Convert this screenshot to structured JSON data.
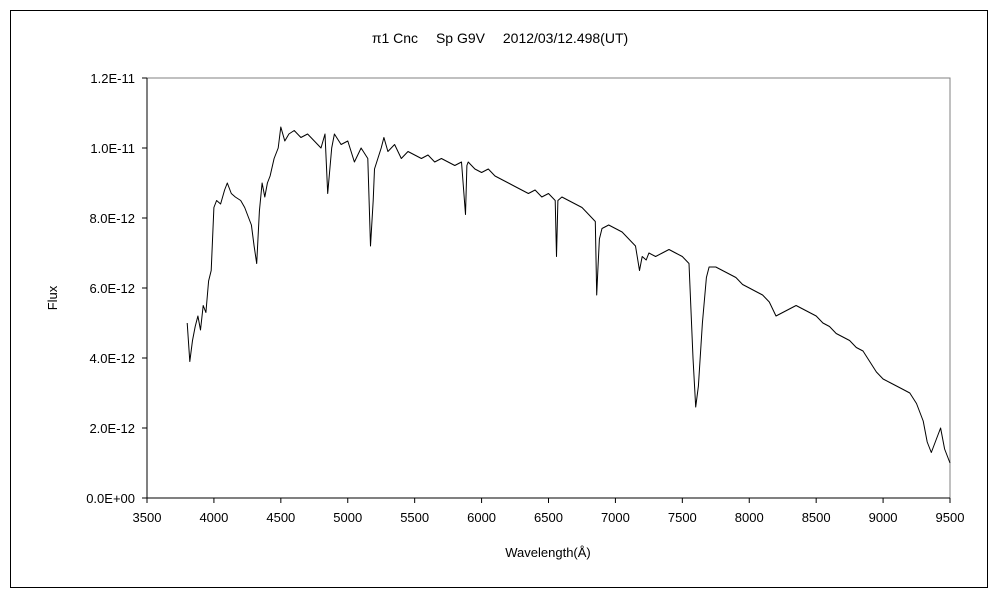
{
  "chart_data": {
    "type": "line",
    "title": "π1 Cnc　 Sp G9V　 2012/03/12.498(UT)",
    "xlabel": "Wavelength(Å)",
    "ylabel": "Flux",
    "xlim": [
      3500,
      9500
    ],
    "ylim": [
      0,
      1.2e-11
    ],
    "x_ticks": [
      3500,
      4000,
      4500,
      5000,
      5500,
      6000,
      6500,
      7000,
      7500,
      8000,
      8500,
      9000,
      9500
    ],
    "x_tick_labels": [
      "3500",
      "4000",
      "4500",
      "5000",
      "5500",
      "6000",
      "6500",
      "7000",
      "7500",
      "8000",
      "8500",
      "9000",
      "9500"
    ],
    "y_ticks": [
      0,
      2e-12,
      4e-12,
      6e-12,
      8e-12,
      1e-11,
      1.2e-11
    ],
    "y_tick_labels": [
      "0.0E+00",
      "2.0E-12",
      "4.0E-12",
      "6.0E-12",
      "8.0E-12",
      "1.0E-11",
      "1.2E-11"
    ],
    "grid": false,
    "legend": "none",
    "line_color": "#000000",
    "series": [
      {
        "x": [
          3800,
          3820,
          3840,
          3860,
          3880,
          3900,
          3920,
          3940,
          3960,
          3980,
          4000,
          4020,
          4050,
          4080,
          4100,
          4130,
          4160,
          4200,
          4230,
          4260,
          4280,
          4300,
          4320,
          4340,
          4360,
          4380,
          4400,
          4420,
          4450,
          4480,
          4500,
          4530,
          4560,
          4600,
          4650,
          4700,
          4750,
          4800,
          4830,
          4850,
          4880,
          4900,
          4950,
          5000,
          5050,
          5100,
          5150,
          5170,
          5190,
          5200,
          5250,
          5270,
          5300,
          5350,
          5400,
          5450,
          5500,
          5550,
          5600,
          5650,
          5700,
          5750,
          5800,
          5850,
          5880,
          5890,
          5900,
          5950,
          6000,
          6050,
          6100,
          6150,
          6200,
          6250,
          6300,
          6350,
          6400,
          6450,
          6500,
          6550,
          6560,
          6570,
          6600,
          6650,
          6700,
          6750,
          6800,
          6850,
          6860,
          6870,
          6880,
          6900,
          6950,
          7000,
          7050,
          7100,
          7150,
          7180,
          7200,
          7230,
          7250,
          7300,
          7350,
          7400,
          7450,
          7500,
          7550,
          7580,
          7600,
          7620,
          7650,
          7680,
          7700,
          7750,
          7800,
          7850,
          7900,
          7950,
          8000,
          8050,
          8100,
          8150,
          8200,
          8250,
          8300,
          8350,
          8400,
          8450,
          8500,
          8550,
          8600,
          8650,
          8700,
          8750,
          8800,
          8850,
          8900,
          8950,
          9000,
          9050,
          9100,
          9150,
          9200,
          9250,
          9300,
          9330,
          9360,
          9400,
          9430,
          9460,
          9500
        ],
        "y": [
          5e-12,
          3.9e-12,
          4.5e-12,
          4.9e-12,
          5.2e-12,
          4.8e-12,
          5.5e-12,
          5.3e-12,
          6.2e-12,
          6.5e-12,
          8.3e-12,
          8.5e-12,
          8.4e-12,
          8.8e-12,
          9e-12,
          8.7e-12,
          8.6e-12,
          8.5e-12,
          8.3e-12,
          8e-12,
          7.8e-12,
          7.2e-12,
          6.7e-12,
          8.2e-12,
          9e-12,
          8.6e-12,
          9e-12,
          9.2e-12,
          9.7e-12,
          1e-11,
          1.06e-11,
          1.02e-11,
          1.04e-11,
          1.05e-11,
          1.03e-11,
          1.04e-11,
          1.02e-11,
          1e-11,
          1.04e-11,
          8.7e-12,
          1e-11,
          1.04e-11,
          1.01e-11,
          1.02e-11,
          9.6e-12,
          1e-11,
          9.7e-12,
          7.2e-12,
          8.5e-12,
          9.4e-12,
          1e-11,
          1.03e-11,
          9.9e-12,
          1.01e-11,
          9.7e-12,
          9.9e-12,
          9.8e-12,
          9.7e-12,
          9.8e-12,
          9.6e-12,
          9.7e-12,
          9.6e-12,
          9.5e-12,
          9.6e-12,
          8.1e-12,
          9.5e-12,
          9.6e-12,
          9.4e-12,
          9.3e-12,
          9.4e-12,
          9.2e-12,
          9.1e-12,
          9e-12,
          8.9e-12,
          8.8e-12,
          8.7e-12,
          8.8e-12,
          8.6e-12,
          8.7e-12,
          8.5e-12,
          6.9e-12,
          8.5e-12,
          8.6e-12,
          8.5e-12,
          8.4e-12,
          8.3e-12,
          8.1e-12,
          7.9e-12,
          5.8e-12,
          6.6e-12,
          7.4e-12,
          7.7e-12,
          7.8e-12,
          7.7e-12,
          7.6e-12,
          7.4e-12,
          7.2e-12,
          6.5e-12,
          6.9e-12,
          6.8e-12,
          7e-12,
          6.9e-12,
          7e-12,
          7.1e-12,
          7e-12,
          6.9e-12,
          6.7e-12,
          4e-12,
          2.6e-12,
          3.2e-12,
          5e-12,
          6.3e-12,
          6.6e-12,
          6.6e-12,
          6.5e-12,
          6.4e-12,
          6.3e-12,
          6.1e-12,
          6e-12,
          5.9e-12,
          5.8e-12,
          5.6e-12,
          5.2e-12,
          5.3e-12,
          5.4e-12,
          5.5e-12,
          5.4e-12,
          5.3e-12,
          5.2e-12,
          5e-12,
          4.9e-12,
          4.7e-12,
          4.6e-12,
          4.5e-12,
          4.3e-12,
          4.2e-12,
          3.9e-12,
          3.6e-12,
          3.4e-12,
          3.3e-12,
          3.2e-12,
          3.1e-12,
          3e-12,
          2.7e-12,
          2.2e-12,
          1.6e-12,
          1.3e-12,
          1.7e-12,
          2e-12,
          1.4e-12,
          1e-12
        ]
      }
    ]
  }
}
